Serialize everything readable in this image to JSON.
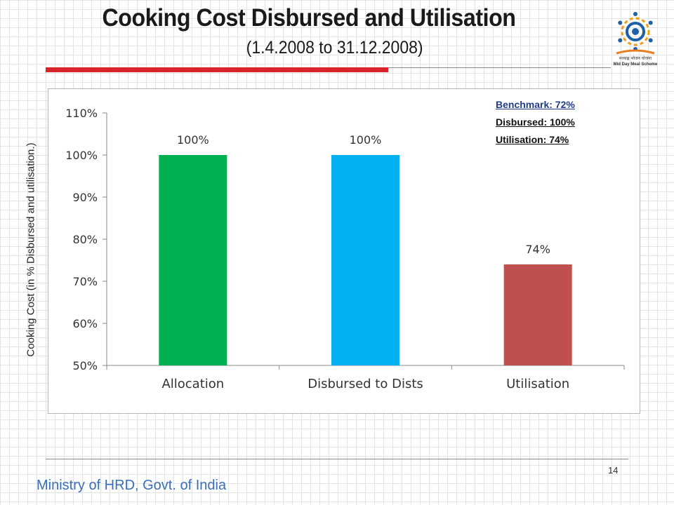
{
  "slide": {
    "title": "Cooking Cost Disbursed and Utilisation",
    "subtitle": "(1.4.2008 to 31.12.2008)",
    "footer": "Ministry of HRD, Govt. of India",
    "page_number": "14",
    "logo": {
      "icon": "mid-day-meal-logo-icon",
      "caption_hindi": "मध्याह्न भोजन योजना",
      "caption": "Mid Day Meal Scheme"
    }
  },
  "legend": {
    "benchmark": "Benchmark: 72%",
    "disbursed": "Disbursed: 100%",
    "utilisation": "Utilisation: 74%"
  },
  "chart_data": {
    "type": "bar",
    "categories": [
      "Allocation",
      "Disbursed to Dists",
      "Utilisation"
    ],
    "values": [
      100,
      100,
      74
    ],
    "data_labels": [
      "100%",
      "100%",
      "74%"
    ],
    "colors": [
      "#00b050",
      "#00b0f0",
      "#c0504d"
    ],
    "ylabel": "Cooking Cost (in % Disbursed and utilisation.)",
    "ylim": [
      50,
      110
    ],
    "yticks": [
      "50%",
      "60%",
      "70%",
      "80%",
      "90%",
      "100%",
      "110%"
    ],
    "gridlines": false,
    "legend_position": "top-right"
  }
}
